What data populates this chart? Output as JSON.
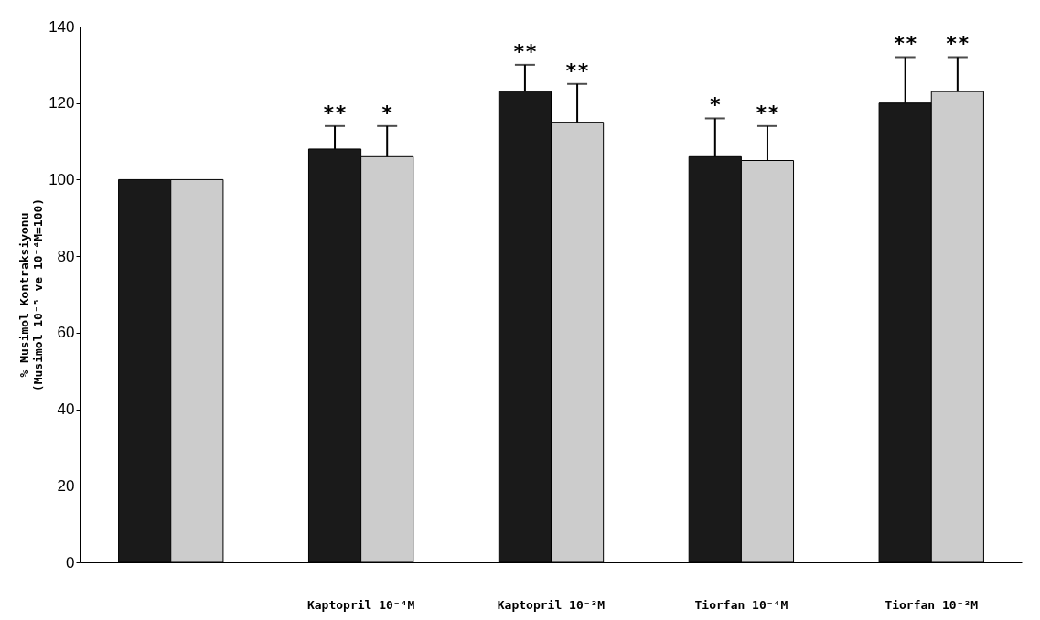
{
  "chart_data": {
    "type": "bar",
    "ylabel": "% Musimol Kontraksiyonu\n(Musimol 10⁻⁵ ve 10⁻⁴M=100)",
    "categories": [
      null,
      "Kaptopril 10⁻⁴M",
      "Kaptopril 10⁻³M",
      "Tiorfan 10⁻⁴M",
      "Tiorfan 10⁻³M"
    ],
    "series": [
      {
        "color": "#1a1a1a",
        "values": [
          100,
          108,
          123,
          106,
          120
        ],
        "errors": [
          null,
          [
            108,
            114
          ],
          [
            123,
            130
          ],
          [
            106,
            116
          ],
          [
            120,
            132
          ]
        ],
        "value_labels": [
          null,
          "**",
          "**",
          "*",
          "**"
        ]
      },
      {
        "color": "#cccccc",
        "values": [
          100,
          106,
          115,
          105,
          123
        ],
        "errors": [
          null,
          [
            106,
            114
          ],
          [
            115,
            125
          ],
          [
            105,
            114
          ],
          [
            123,
            132
          ]
        ],
        "value_labels": [
          null,
          "*",
          "**",
          "**",
          "**"
        ]
      }
    ],
    "ylim": [
      0,
      140
    ],
    "yticks": [
      0,
      20,
      40,
      60,
      80,
      100,
      120,
      140
    ],
    "grid": false,
    "legend": false
  }
}
